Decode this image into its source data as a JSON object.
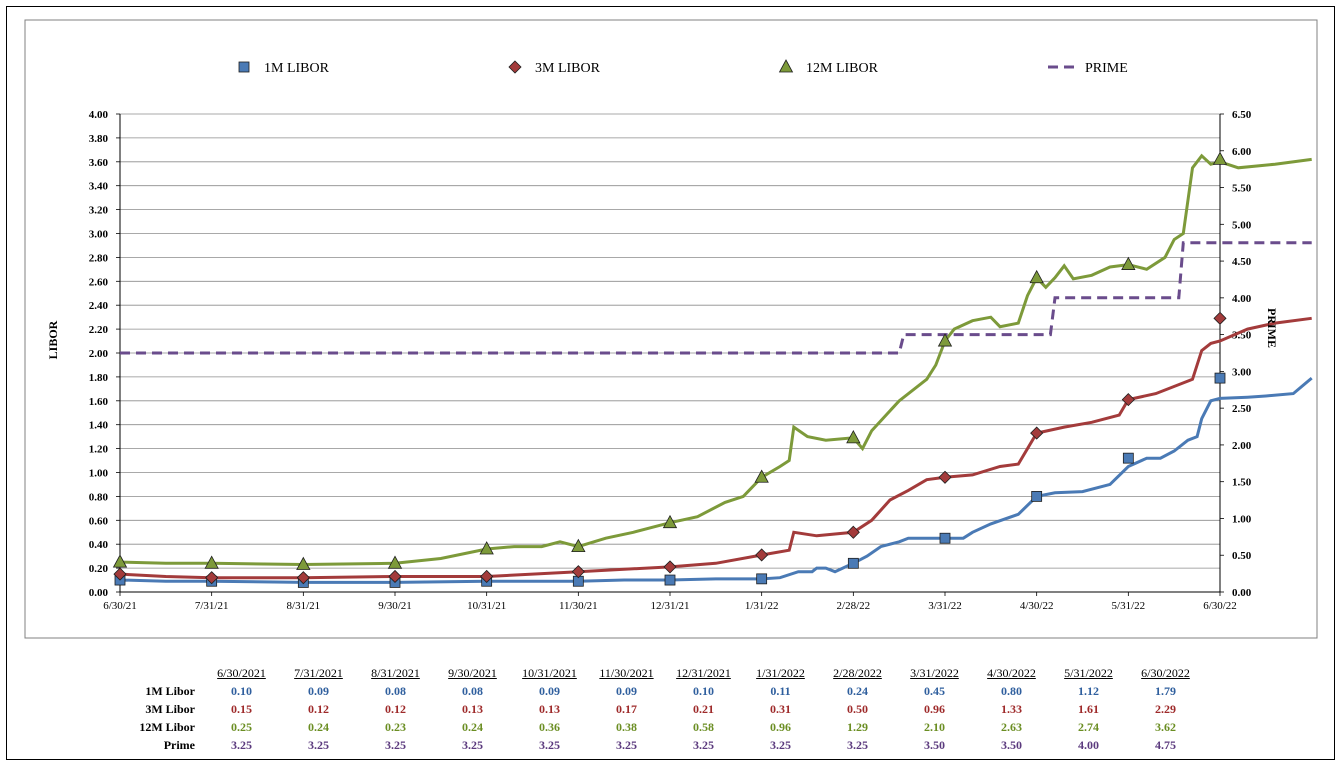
{
  "colors": {
    "libor_1m": "#4a7ab5",
    "libor_3m": "#a33b3b",
    "libor_12m": "#7d9a3a",
    "prime": "#6a4c8c"
  },
  "chart_data": {
    "type": "line",
    "legend": [
      {
        "name": "1M LIBOR",
        "marker": "square"
      },
      {
        "name": "3M LIBOR",
        "marker": "diamond"
      },
      {
        "name": "12M LIBOR",
        "marker": "triangle"
      },
      {
        "name": "PRIME",
        "marker": "dashed-line"
      }
    ],
    "legend_position": "top",
    "ylabel_left": "LIBOR",
    "ylabel_right": "PRIME",
    "ylim_left": [
      0,
      4
    ],
    "ylim_right": [
      0,
      6.5
    ],
    "yticks_left": [
      "0.00",
      "0.20",
      "0.40",
      "0.60",
      "0.80",
      "1.00",
      "1.20",
      "1.40",
      "1.60",
      "1.80",
      "2.00",
      "2.20",
      "2.40",
      "2.60",
      "2.80",
      "3.00",
      "3.20",
      "3.40",
      "3.60",
      "3.80",
      "4.00"
    ],
    "yticks_right": [
      "0.00",
      "0.50",
      "1.00",
      "1.50",
      "2.00",
      "2.50",
      "3.00",
      "3.50",
      "4.00",
      "4.50",
      "5.00",
      "5.50",
      "6.00",
      "6.50"
    ],
    "xticks": [
      "6/30/21",
      "7/31/21",
      "8/31/21",
      "9/30/21",
      "10/31/21",
      "11/30/21",
      "12/31/21",
      "1/31/22",
      "2/28/22",
      "3/31/22",
      "4/30/22",
      "5/31/22",
      "6/30/22"
    ],
    "grid": true,
    "series": [
      {
        "name": "1M LIBOR",
        "axis": "left",
        "values": [
          0.1,
          0.09,
          0.08,
          0.08,
          0.09,
          0.09,
          0.1,
          0.11,
          0.24,
          0.45,
          0.8,
          1.12,
          1.79
        ]
      },
      {
        "name": "3M LIBOR",
        "axis": "left",
        "values": [
          0.15,
          0.12,
          0.12,
          0.13,
          0.13,
          0.17,
          0.21,
          0.31,
          0.5,
          0.96,
          1.33,
          1.61,
          2.29
        ]
      },
      {
        "name": "12M LIBOR",
        "axis": "left",
        "values": [
          0.25,
          0.24,
          0.23,
          0.24,
          0.36,
          0.38,
          0.58,
          0.96,
          1.29,
          2.1,
          2.63,
          2.74,
          3.62
        ]
      },
      {
        "name": "PRIME",
        "axis": "right",
        "values": [
          3.25,
          3.25,
          3.25,
          3.25,
          3.25,
          3.25,
          3.25,
          3.25,
          3.25,
          3.5,
          3.5,
          4.0,
          4.75
        ]
      }
    ],
    "daily_paths": {
      "libor_1m": [
        [
          0,
          0.1
        ],
        [
          0.5,
          0.09
        ],
        [
          1,
          0.09
        ],
        [
          2,
          0.08
        ],
        [
          3,
          0.08
        ],
        [
          4,
          0.09
        ],
        [
          5,
          0.09
        ],
        [
          5.5,
          0.1
        ],
        [
          6,
          0.1
        ],
        [
          6.5,
          0.11
        ],
        [
          7,
          0.11
        ],
        [
          7.2,
          0.12
        ],
        [
          7.4,
          0.17
        ],
        [
          7.55,
          0.17
        ],
        [
          7.6,
          0.2
        ],
        [
          7.7,
          0.2
        ],
        [
          7.8,
          0.17
        ],
        [
          8,
          0.24
        ],
        [
          8.15,
          0.3
        ],
        [
          8.3,
          0.38
        ],
        [
          8.5,
          0.42
        ],
        [
          8.6,
          0.45
        ],
        [
          9,
          0.45
        ],
        [
          9.2,
          0.45
        ],
        [
          9.3,
          0.5
        ],
        [
          9.5,
          0.57
        ],
        [
          9.8,
          0.65
        ],
        [
          10,
          0.8
        ],
        [
          10.2,
          0.83
        ],
        [
          10.5,
          0.84
        ],
        [
          10.8,
          0.9
        ],
        [
          11,
          1.05
        ],
        [
          11.2,
          1.12
        ],
        [
          11.35,
          1.12
        ],
        [
          11.5,
          1.18
        ],
        [
          11.65,
          1.27
        ],
        [
          11.75,
          1.3
        ],
        [
          11.8,
          1.45
        ],
        [
          11.9,
          1.6
        ],
        [
          12,
          1.62
        ],
        [
          12.3,
          1.63
        ],
        [
          12.5,
          1.64
        ],
        [
          12.8,
          1.66
        ],
        [
          13,
          1.79
        ]
      ],
      "libor_3m": [
        [
          0,
          0.15
        ],
        [
          0.5,
          0.13
        ],
        [
          1,
          0.12
        ],
        [
          2,
          0.12
        ],
        [
          3,
          0.13
        ],
        [
          4,
          0.13
        ],
        [
          4.5,
          0.15
        ],
        [
          5,
          0.17
        ],
        [
          5.5,
          0.19
        ],
        [
          6,
          0.21
        ],
        [
          6.5,
          0.24
        ],
        [
          7,
          0.31
        ],
        [
          7.3,
          0.35
        ],
        [
          7.35,
          0.5
        ],
        [
          7.6,
          0.47
        ],
        [
          8,
          0.5
        ],
        [
          8.2,
          0.6
        ],
        [
          8.4,
          0.77
        ],
        [
          8.6,
          0.85
        ],
        [
          8.8,
          0.94
        ],
        [
          9,
          0.96
        ],
        [
          9.3,
          0.98
        ],
        [
          9.6,
          1.05
        ],
        [
          9.8,
          1.07
        ],
        [
          10,
          1.33
        ],
        [
          10.3,
          1.38
        ],
        [
          10.6,
          1.42
        ],
        [
          10.9,
          1.48
        ],
        [
          11,
          1.61
        ],
        [
          11.3,
          1.66
        ],
        [
          11.6,
          1.75
        ],
        [
          11.7,
          1.78
        ],
        [
          11.8,
          2.02
        ],
        [
          11.9,
          2.08
        ],
        [
          12,
          2.1
        ],
        [
          12.3,
          2.2
        ],
        [
          12.6,
          2.25
        ],
        [
          13,
          2.29
        ]
      ],
      "libor_12m": [
        [
          0,
          0.25
        ],
        [
          0.5,
          0.24
        ],
        [
          1,
          0.24
        ],
        [
          2,
          0.23
        ],
        [
          3,
          0.24
        ],
        [
          3.5,
          0.28
        ],
        [
          4,
          0.36
        ],
        [
          4.3,
          0.38
        ],
        [
          4.6,
          0.38
        ],
        [
          4.8,
          0.42
        ],
        [
          5,
          0.38
        ],
        [
          5.3,
          0.45
        ],
        [
          5.6,
          0.5
        ],
        [
          6,
          0.58
        ],
        [
          6.3,
          0.63
        ],
        [
          6.6,
          0.75
        ],
        [
          6.8,
          0.8
        ],
        [
          7,
          0.96
        ],
        [
          7.2,
          1.05
        ],
        [
          7.3,
          1.1
        ],
        [
          7.35,
          1.38
        ],
        [
          7.5,
          1.3
        ],
        [
          7.7,
          1.27
        ],
        [
          8,
          1.29
        ],
        [
          8.1,
          1.2
        ],
        [
          8.2,
          1.35
        ],
        [
          8.5,
          1.6
        ],
        [
          8.8,
          1.78
        ],
        [
          8.9,
          1.9
        ],
        [
          9,
          2.1
        ],
        [
          9.1,
          2.2
        ],
        [
          9.3,
          2.27
        ],
        [
          9.5,
          2.3
        ],
        [
          9.6,
          2.22
        ],
        [
          9.8,
          2.25
        ],
        [
          9.9,
          2.48
        ],
        [
          10,
          2.63
        ],
        [
          10.1,
          2.55
        ],
        [
          10.2,
          2.63
        ],
        [
          10.3,
          2.73
        ],
        [
          10.4,
          2.62
        ],
        [
          10.6,
          2.65
        ],
        [
          10.8,
          2.72
        ],
        [
          11,
          2.74
        ],
        [
          11.2,
          2.7
        ],
        [
          11.4,
          2.8
        ],
        [
          11.5,
          2.95
        ],
        [
          11.6,
          3.0
        ],
        [
          11.7,
          3.55
        ],
        [
          11.8,
          3.65
        ],
        [
          11.9,
          3.58
        ],
        [
          12,
          3.6
        ],
        [
          12.2,
          3.55
        ],
        [
          12.6,
          3.58
        ],
        [
          13,
          3.62
        ]
      ],
      "prime": [
        [
          0,
          3.25
        ],
        [
          8.5,
          3.25
        ],
        [
          8.55,
          3.5
        ],
        [
          10.15,
          3.5
        ],
        [
          10.2,
          4.0
        ],
        [
          11.55,
          4.0
        ],
        [
          11.6,
          4.75
        ],
        [
          13,
          4.75
        ]
      ]
    }
  },
  "table": {
    "headers": [
      "6/30/2021",
      "7/31/2021",
      "8/31/2021",
      "9/30/2021",
      "10/31/2021",
      "11/30/2021",
      "12/31/2021",
      "1/31/2022",
      "2/28/2022",
      "3/31/2022",
      "4/30/2022",
      "5/31/2022",
      "6/30/2022"
    ],
    "rows": [
      {
        "label": "1M Libor",
        "values": [
          "0.10",
          "0.09",
          "0.08",
          "0.08",
          "0.09",
          "0.09",
          "0.10",
          "0.11",
          "0.24",
          "0.45",
          "0.80",
          "1.12",
          "1.79"
        ]
      },
      {
        "label": "3M Libor",
        "values": [
          "0.15",
          "0.12",
          "0.12",
          "0.13",
          "0.13",
          "0.17",
          "0.21",
          "0.31",
          "0.50",
          "0.96",
          "1.33",
          "1.61",
          "2.29"
        ]
      },
      {
        "label": "12M Libor",
        "values": [
          "0.25",
          "0.24",
          "0.23",
          "0.24",
          "0.36",
          "0.38",
          "0.58",
          "0.96",
          "1.29",
          "2.10",
          "2.63",
          "2.74",
          "3.62"
        ]
      },
      {
        "label": "Prime",
        "values": [
          "3.25",
          "3.25",
          "3.25",
          "3.25",
          "3.25",
          "3.25",
          "3.25",
          "3.25",
          "3.25",
          "3.50",
          "3.50",
          "4.00",
          "4.75"
        ]
      }
    ]
  }
}
